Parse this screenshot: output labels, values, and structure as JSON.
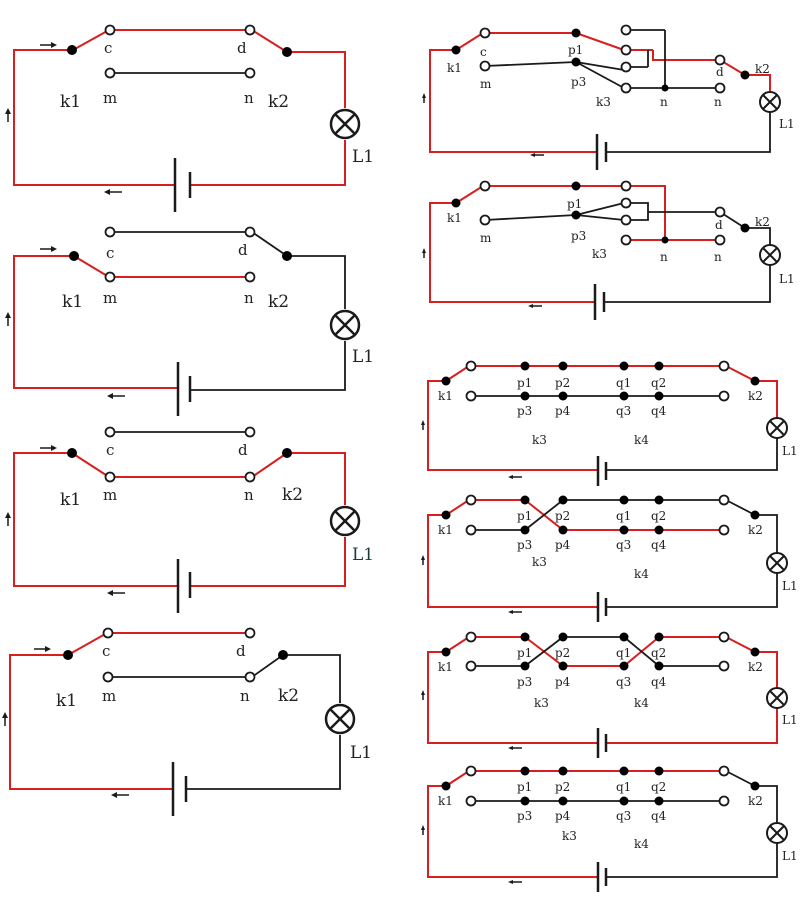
{
  "colors": {
    "live_wire": "#d81e1e",
    "wire": "#1a1a1a",
    "node_open": "#ffffff",
    "node_closed": "#000000"
  },
  "labels": {
    "c": "c",
    "d": "d",
    "m": "m",
    "n": "n",
    "k1": "k1",
    "k2": "k2",
    "k3": "k3",
    "k4": "k4",
    "L1": "L1",
    "p1": "p1",
    "p2": "p2",
    "p3": "p3",
    "p4": "p4",
    "q1": "q1",
    "q2": "q2",
    "q3": "q3",
    "q4": "q4"
  },
  "icons": {
    "lamp": "lamp-icon",
    "battery": "battery-icon",
    "arrow": "arrow-icon",
    "terminal": "terminal-icon"
  },
  "diagrams": [
    {
      "id": "left-1",
      "switch_k1": "c",
      "switch_k2": "d",
      "lamp": "on"
    },
    {
      "id": "left-2",
      "switch_k1": "m",
      "switch_k2": "d",
      "lamp": "off"
    },
    {
      "id": "left-3",
      "switch_k1": "m",
      "switch_k2": "n",
      "lamp": "on"
    },
    {
      "id": "left-4",
      "switch_k1": "c",
      "switch_k2": "n",
      "lamp": "off"
    },
    {
      "id": "right-1",
      "switches": [
        "k1",
        "k2",
        "k3"
      ],
      "lamp": "on"
    },
    {
      "id": "right-2",
      "switches": [
        "k1",
        "k2",
        "k3"
      ],
      "lamp": "off"
    },
    {
      "id": "right-3",
      "switches": [
        "k1",
        "k2",
        "k3",
        "k4"
      ],
      "lamp": "on"
    },
    {
      "id": "right-4",
      "switches": [
        "k1",
        "k2",
        "k3",
        "k4"
      ],
      "lamp": "off"
    },
    {
      "id": "right-5",
      "switches": [
        "k1",
        "k2",
        "k3",
        "k4"
      ],
      "lamp": "on"
    },
    {
      "id": "right-6",
      "switches": [
        "k1",
        "k2",
        "k3",
        "k4"
      ],
      "lamp": "off"
    }
  ]
}
